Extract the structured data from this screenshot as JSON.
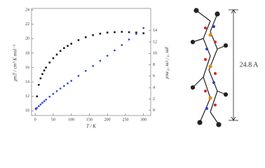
{
  "chart_data": {
    "type": "scatter",
    "xlabel": "T / K",
    "ylabel": "χmT / cm³ K mol⁻¹",
    "y2label": "χm⁻¹ / cm⁻³ mol",
    "x": [
      2,
      5,
      10,
      15,
      20,
      25,
      30,
      40,
      50,
      60,
      70,
      80,
      90,
      100,
      120,
      140,
      160,
      180,
      200,
      220,
      240,
      260,
      280,
      300
    ],
    "series": [
      {
        "name": "χmT",
        "color": "#1a1a1a",
        "marker": "square",
        "values": [
          10.3,
          12.0,
          13.6,
          14.5,
          15.1,
          15.6,
          16.0,
          16.7,
          17.3,
          17.8,
          18.3,
          18.7,
          19.0,
          19.3,
          19.8,
          20.2,
          20.5,
          20.7,
          20.85,
          20.9,
          20.95,
          20.9,
          20.85,
          20.75
        ]
      },
      {
        "name": "χm⁻¹",
        "color": "#3a4fd8",
        "marker": "circle",
        "axis": "y2",
        "values": [
          0.19,
          0.42,
          0.74,
          1.03,
          1.32,
          1.6,
          1.88,
          2.4,
          2.89,
          3.37,
          3.83,
          4.28,
          4.74,
          5.18,
          6.06,
          6.93,
          7.8,
          8.7,
          9.59,
          10.53,
          11.46,
          12.44,
          13.43,
          14.46
        ]
      }
    ],
    "xlim": [
      -10,
      320
    ],
    "xticks": [
      0,
      50,
      100,
      150,
      200,
      250,
      300
    ],
    "ylim": [
      9.35,
      24.2
    ],
    "yticks": [
      10,
      12,
      14,
      16,
      18,
      20,
      22,
      24
    ],
    "y2lim": [
      -0.9,
      17.9
    ],
    "y2ticks": [
      0,
      2,
      4,
      6,
      8,
      10,
      12,
      14
    ]
  },
  "structure": {
    "dimension_label": "24.8 A"
  }
}
